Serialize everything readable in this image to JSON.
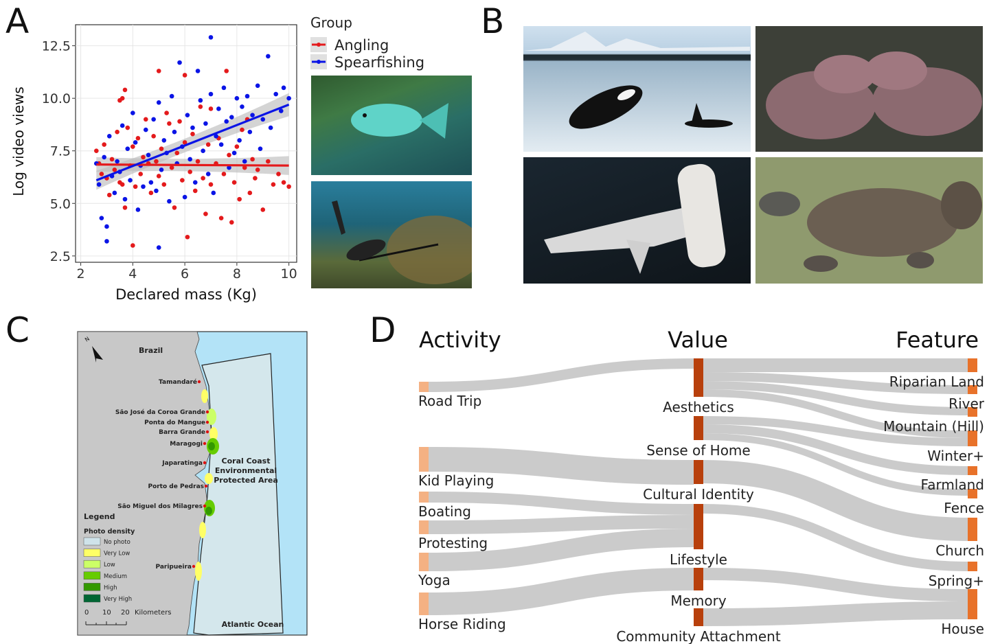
{
  "panels": {
    "a": "A",
    "b": "B",
    "c": "C",
    "d": "D"
  },
  "colors": {
    "angling": "#e41a1c",
    "spearfishing": "#0a14e6",
    "band": "#bdbdbd",
    "node_activity": "#f4b183",
    "node_value": "#b8400c",
    "node_feature": "#e8722a",
    "link": "#c8c8c8"
  },
  "chart_data": [
    {
      "type": "scatter",
      "xlabel": "Declared mass (Kg)",
      "ylabel": "Log video views",
      "xlim": [
        1.8,
        10.3
      ],
      "ylim": [
        2.2,
        13.5
      ],
      "xticks": [
        "2",
        "4",
        "6",
        "8",
        "10"
      ],
      "yticks": [
        "2.5",
        "5.0",
        "7.5",
        "10.0",
        "12.5"
      ],
      "grid": true,
      "legend_title": "Group",
      "legend_position": "right",
      "series": [
        {
          "name": "Angling",
          "color": "#e41a1c",
          "fit": {
            "x": [
              2.6,
              10.0
            ],
            "y": [
              6.85,
              6.8
            ]
          },
          "points": [
            [
              2.6,
              7.5
            ],
            [
              2.7,
              6.9
            ],
            [
              2.8,
              6.4
            ],
            [
              2.9,
              7.8
            ],
            [
              3.0,
              6.2
            ],
            [
              3.1,
              5.4
            ],
            [
              3.2,
              7.1
            ],
            [
              3.3,
              6.6
            ],
            [
              3.4,
              8.4
            ],
            [
              3.5,
              9.9
            ],
            [
              3.5,
              6.0
            ],
            [
              3.6,
              10.0
            ],
            [
              3.6,
              5.9
            ],
            [
              3.7,
              10.4
            ],
            [
              3.7,
              4.8
            ],
            [
              3.8,
              8.6
            ],
            [
              3.9,
              6.8
            ],
            [
              4.0,
              7.7
            ],
            [
              4.0,
              3.0
            ],
            [
              4.1,
              5.8
            ],
            [
              4.2,
              8.1
            ],
            [
              4.3,
              6.4
            ],
            [
              4.4,
              7.2
            ],
            [
              4.5,
              9.0
            ],
            [
              4.6,
              6.9
            ],
            [
              4.7,
              5.5
            ],
            [
              4.8,
              8.2
            ],
            [
              4.9,
              7.0
            ],
            [
              5.0,
              6.3
            ],
            [
              5.0,
              11.3
            ],
            [
              5.1,
              7.6
            ],
            [
              5.2,
              5.9
            ],
            [
              5.3,
              9.3
            ],
            [
              5.4,
              8.8
            ],
            [
              5.5,
              6.7
            ],
            [
              5.6,
              4.8
            ],
            [
              5.7,
              7.4
            ],
            [
              5.8,
              8.9
            ],
            [
              5.9,
              6.1
            ],
            [
              6.0,
              7.9
            ],
            [
              6.0,
              11.1
            ],
            [
              6.1,
              3.4
            ],
            [
              6.2,
              6.5
            ],
            [
              6.3,
              8.3
            ],
            [
              6.4,
              5.6
            ],
            [
              6.5,
              7.0
            ],
            [
              6.6,
              9.6
            ],
            [
              6.7,
              6.2
            ],
            [
              6.8,
              4.5
            ],
            [
              6.9,
              7.8
            ],
            [
              7.0,
              5.9
            ],
            [
              7.0,
              9.5
            ],
            [
              7.2,
              6.9
            ],
            [
              7.3,
              8.1
            ],
            [
              7.4,
              4.3
            ],
            [
              7.5,
              6.4
            ],
            [
              7.6,
              11.3
            ],
            [
              7.7,
              7.3
            ],
            [
              7.8,
              4.1
            ],
            [
              7.9,
              6.0
            ],
            [
              8.0,
              7.7
            ],
            [
              8.1,
              5.2
            ],
            [
              8.2,
              8.5
            ],
            [
              8.3,
              6.7
            ],
            [
              8.4,
              9.0
            ],
            [
              8.5,
              5.5
            ],
            [
              8.6,
              7.1
            ],
            [
              8.7,
              6.2
            ],
            [
              8.8,
              6.6
            ],
            [
              9.0,
              4.7
            ],
            [
              9.2,
              7.0
            ],
            [
              9.4,
              5.9
            ],
            [
              9.6,
              6.4
            ],
            [
              9.8,
              6.0
            ],
            [
              10.0,
              5.8
            ]
          ]
        },
        {
          "name": "Spearfishing",
          "color": "#0a14e6",
          "fit": {
            "x": [
              2.6,
              10.0
            ],
            "y": [
              6.1,
              9.7
            ]
          },
          "points": [
            [
              2.6,
              6.9
            ],
            [
              2.7,
              5.9
            ],
            [
              2.8,
              4.3
            ],
            [
              2.9,
              7.2
            ],
            [
              3.0,
              3.2
            ],
            [
              3.0,
              3.9
            ],
            [
              3.1,
              8.2
            ],
            [
              3.2,
              6.3
            ],
            [
              3.3,
              5.5
            ],
            [
              3.4,
              7.0
            ],
            [
              3.5,
              6.5
            ],
            [
              3.6,
              8.7
            ],
            [
              3.7,
              5.2
            ],
            [
              3.8,
              7.6
            ],
            [
              3.9,
              6.1
            ],
            [
              4.0,
              9.3
            ],
            [
              4.1,
              7.9
            ],
            [
              4.2,
              4.7
            ],
            [
              4.3,
              6.8
            ],
            [
              4.4,
              5.8
            ],
            [
              4.5,
              8.5
            ],
            [
              4.6,
              7.3
            ],
            [
              4.7,
              6.0
            ],
            [
              4.8,
              9.0
            ],
            [
              4.9,
              5.6
            ],
            [
              5.0,
              2.9
            ],
            [
              5.0,
              9.8
            ],
            [
              5.1,
              6.6
            ],
            [
              5.2,
              8.0
            ],
            [
              5.3,
              7.4
            ],
            [
              5.4,
              5.1
            ],
            [
              5.5,
              10.1
            ],
            [
              5.6,
              8.4
            ],
            [
              5.7,
              6.9
            ],
            [
              5.8,
              11.7
            ],
            [
              5.9,
              7.7
            ],
            [
              6.0,
              5.3
            ],
            [
              6.1,
              9.2
            ],
            [
              6.2,
              7.1
            ],
            [
              6.3,
              8.6
            ],
            [
              6.4,
              6.0
            ],
            [
              6.5,
              11.3
            ],
            [
              6.6,
              9.9
            ],
            [
              6.7,
              7.5
            ],
            [
              6.8,
              8.8
            ],
            [
              6.9,
              6.4
            ],
            [
              7.0,
              12.9
            ],
            [
              7.0,
              10.2
            ],
            [
              7.1,
              5.5
            ],
            [
              7.2,
              8.2
            ],
            [
              7.3,
              9.5
            ],
            [
              7.4,
              7.8
            ],
            [
              7.5,
              10.5
            ],
            [
              7.6,
              8.9
            ],
            [
              7.7,
              6.7
            ],
            [
              7.8,
              9.1
            ],
            [
              7.9,
              7.4
            ],
            [
              8.0,
              10.0
            ],
            [
              8.1,
              8.0
            ],
            [
              8.2,
              9.6
            ],
            [
              8.3,
              7.0
            ],
            [
              8.4,
              10.1
            ],
            [
              8.5,
              8.4
            ],
            [
              8.6,
              9.2
            ],
            [
              8.8,
              10.6
            ],
            [
              8.9,
              7.6
            ],
            [
              9.0,
              9.0
            ],
            [
              9.2,
              12.0
            ],
            [
              9.3,
              8.6
            ],
            [
              9.5,
              10.2
            ],
            [
              9.7,
              9.4
            ],
            [
              9.8,
              10.5
            ],
            [
              10.0,
              10.0
            ]
          ]
        }
      ]
    },
    {
      "type": "sankey",
      "columns": [
        "Activity",
        "Value",
        "Feature"
      ],
      "activities": [
        "Road Trip",
        "Kid Playing",
        "Boating",
        "Protesting",
        "Yoga",
        "Horse Riding"
      ],
      "values": [
        "Aesthetics",
        "Sense of Home",
        "Cultural Identity",
        "Lifestyle",
        "Memory",
        "Community Attachment"
      ],
      "features": [
        "Riparian Land",
        "River",
        "Mountain (Hill)",
        "Winter+",
        "Farmland",
        "Fence",
        "Church",
        "Spring+",
        "House"
      ],
      "links": [
        [
          "Road Trip",
          "Aesthetics"
        ],
        [
          "Kid Playing",
          "Cultural Identity"
        ],
        [
          "Boating",
          "Lifestyle"
        ],
        [
          "Protesting",
          "Lifestyle"
        ],
        [
          "Yoga",
          "Lifestyle"
        ],
        [
          "Horse Riding",
          "Memory"
        ],
        [
          "Aesthetics",
          "Riparian Land"
        ],
        [
          "Aesthetics",
          "River"
        ],
        [
          "Aesthetics",
          "Mountain (Hill)"
        ],
        [
          "Aesthetics",
          "Winter+"
        ],
        [
          "Sense of Home",
          "Winter+"
        ],
        [
          "Sense of Home",
          "Farmland"
        ],
        [
          "Sense of Home",
          "Fence"
        ],
        [
          "Cultural Identity",
          "Church"
        ],
        [
          "Lifestyle",
          "Spring+"
        ],
        [
          "Memory",
          "House"
        ],
        [
          "Community Attachment",
          "House"
        ]
      ]
    }
  ],
  "map": {
    "country": "Brazil",
    "towns": [
      "Tamandaré",
      "São José da Coroa Grande",
      "Ponta do Mangue",
      "Barra Grande",
      "Maragogi",
      "Japaratinga",
      "Porto de Pedras",
      "São Miguel dos Milagres",
      "Paripueira"
    ],
    "area_label": [
      "Coral Coast",
      "Environmental",
      "Protected Area"
    ],
    "ocean": "Atlantic Ocean",
    "north": "N",
    "legend": {
      "title": "Legend",
      "subtitle": "Photo density",
      "items": [
        {
          "label": "No photo",
          "color": "#cfe3ea"
        },
        {
          "label": "Very Low",
          "color": "#ffff66"
        },
        {
          "label": "Low",
          "color": "#ccff66"
        },
        {
          "label": "Medium",
          "color": "#66cc00"
        },
        {
          "label": "High",
          "color": "#339900"
        },
        {
          "label": "Very High",
          "color": "#006633"
        }
      ]
    },
    "scale": {
      "ticks": [
        "0",
        "10",
        "20"
      ],
      "unit": "Kilometers"
    }
  },
  "photos": {
    "a1": "fish-photo",
    "a2": "diver-photo",
    "b1": "orca-photo",
    "b2": "hippo-photo",
    "b3": "hammerhead-photo",
    "b4": "platypus-photo"
  }
}
